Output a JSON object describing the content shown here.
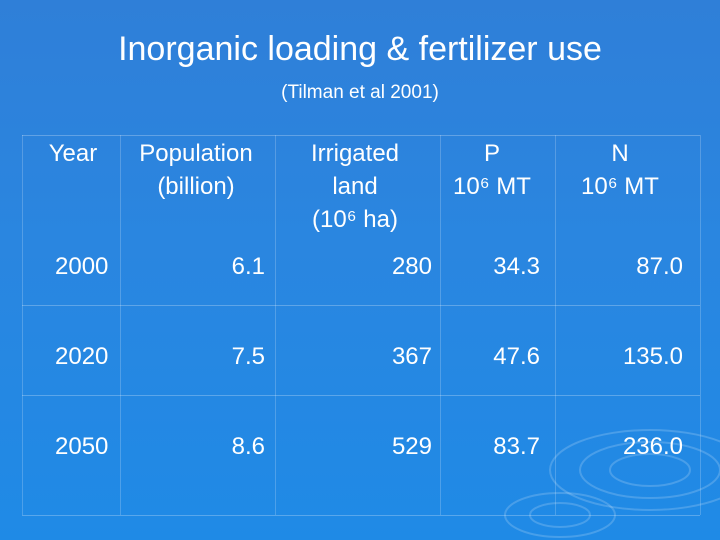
{
  "title": "Inorganic loading & fertilizer use",
  "subtitle": "(Tilman et al 2001)",
  "table": {
    "headers": [
      [
        "Year"
      ],
      [
        "Population",
        "(billion)"
      ],
      [
        "Irrigated",
        "land",
        "(10⁶ ha)"
      ],
      [
        "P",
        "10⁶ MT"
      ],
      [
        "N",
        "10⁶ MT"
      ]
    ],
    "rows": [
      [
        "2000",
        "6.1",
        "280",
        "34.3",
        "87.0"
      ],
      [
        "2020",
        "7.5",
        "367",
        "47.6",
        "135.0"
      ],
      [
        "2050",
        "8.6",
        "529",
        "83.7",
        "236.0"
      ]
    ]
  }
}
